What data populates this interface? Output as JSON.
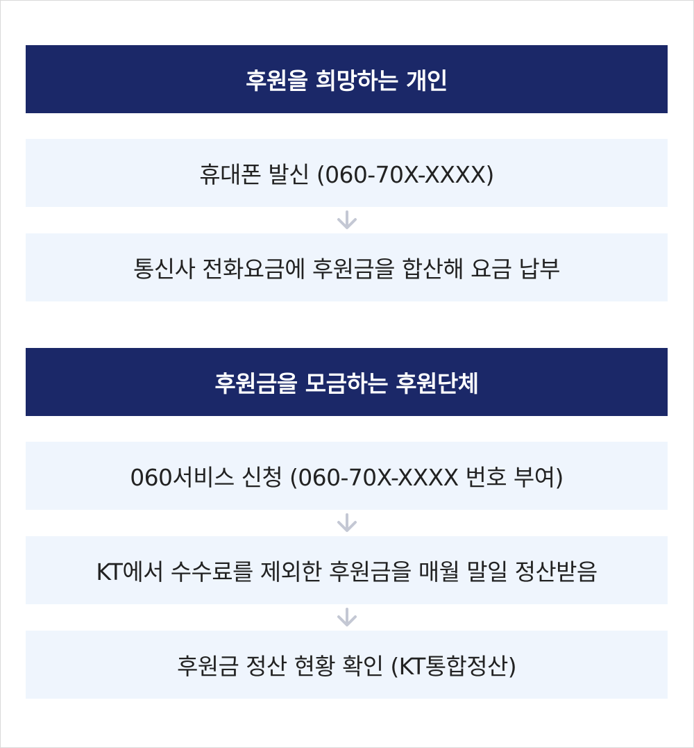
{
  "sections": [
    {
      "title": "후원을 희망하는 개인",
      "steps": [
        "휴대폰 발신 (060-70X-XXXX)",
        "통신사 전화요금에 후원금을 합산해 요금 납부"
      ]
    },
    {
      "title": "후원금을 모금하는 후원단체",
      "steps": [
        "060서비스 신청 (060-70X-XXXX 번호 부여)",
        "KT에서 수수료를 제외한 후원금을 매월 말일 정산받음",
        "후원금 정산 현황 확인 (KT통합정산)"
      ]
    }
  ],
  "colors": {
    "header_bg": "#1b2868",
    "step_bg": "#eff5fd",
    "arrow": "#c4c8d4"
  },
  "icons": {
    "connector": "arrow-down-icon"
  }
}
